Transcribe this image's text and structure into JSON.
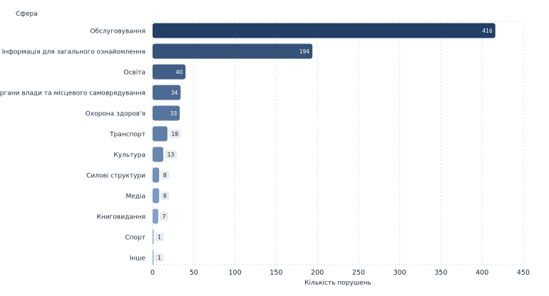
{
  "chart_data": {
    "type": "bar",
    "orientation": "horizontal",
    "categories": [
      "Обслуговування",
      "Інформація для загального ознайомлення",
      "Освіта",
      "Органи влади та місцевого самоврядування",
      "Охорона здоров'я",
      "Транспорт",
      "Культура",
      "Силові структури",
      "Медіа",
      "Книговидання",
      "Спорт",
      "Інше"
    ],
    "values": [
      416,
      194,
      40,
      34,
      33,
      18,
      13,
      8,
      8,
      7,
      1,
      1
    ],
    "xlabel": "Кількість порушень",
    "ylabel": "Сфера",
    "xlim": [
      0,
      450
    ],
    "xticks": [
      0,
      50,
      100,
      150,
      200,
      250,
      300,
      350,
      400,
      450
    ],
    "grid": true,
    "data_labels": true,
    "colors": {
      "dark": "#233f65",
      "light": "#8fb1dc"
    }
  }
}
